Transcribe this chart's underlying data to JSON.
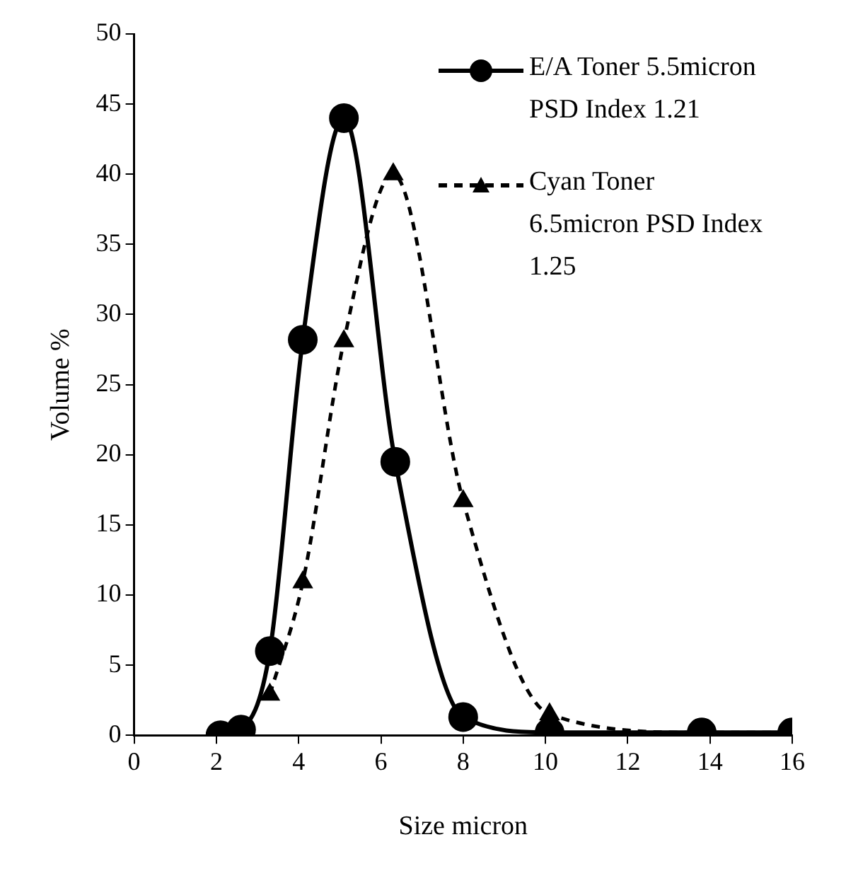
{
  "chart_data": {
    "type": "line",
    "xlabel": "Size micron",
    "ylabel": "Volume %",
    "xlim": [
      0,
      16
    ],
    "xticks": [
      0,
      2,
      4,
      6,
      8,
      10,
      12,
      14,
      16
    ],
    "ylim": [
      0,
      50
    ],
    "yticks": [
      0,
      5,
      10,
      15,
      20,
      25,
      30,
      35,
      40,
      45,
      50
    ],
    "grid": false,
    "legend": "top right",
    "series": [
      {
        "name": "E/A Toner 5.5micron PSD Index 1.21",
        "color": "#000000",
        "marker": "circle",
        "line_style": "solid",
        "x": [
          2.1,
          2.6,
          3.3,
          4.1,
          5.1,
          6.35,
          8.0,
          10.1,
          13.8,
          16.0
        ],
        "values": [
          0,
          0.4,
          6,
          28.2,
          44,
          19.5,
          1.3,
          0.2,
          0.2,
          0.2
        ]
      },
      {
        "name": "Cyan Toner 6.5micron PSD Index 1.25",
        "color": "#000000",
        "marker": "triangle",
        "line_style": "dashed",
        "x": [
          3.3,
          4.1,
          5.1,
          6.3,
          8.0,
          10.1,
          13.8,
          16.0
        ],
        "values": [
          2.9,
          10.9,
          28.1,
          40,
          16.7,
          1.5,
          0.2,
          0.2
        ]
      }
    ]
  }
}
